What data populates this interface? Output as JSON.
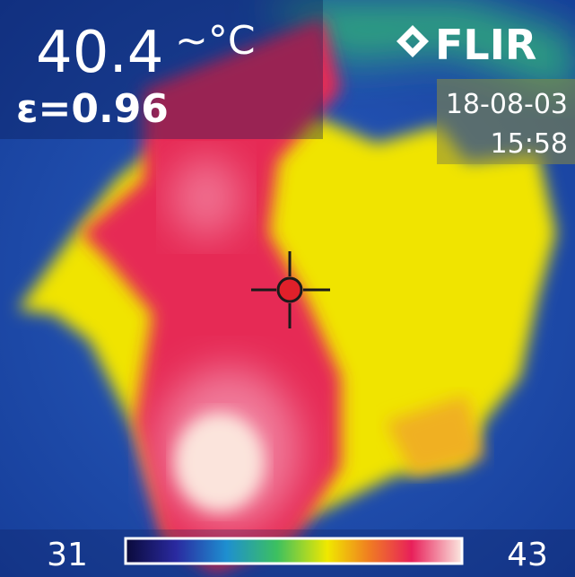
{
  "reading": {
    "temperature": "40.4",
    "unit": "~°C",
    "emissivity": "ε=0.96"
  },
  "brand": "FLIR",
  "timestamp": {
    "date": "18-08-03",
    "time": "15:58"
  },
  "scale": {
    "min": "31",
    "max": "43"
  }
}
